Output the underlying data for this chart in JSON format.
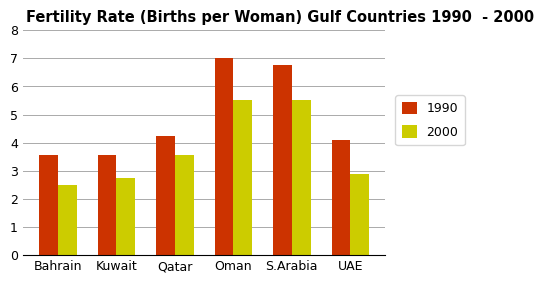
{
  "title": "Fertility Rate (Births per Woman) Gulf Countries 1990  - 2000",
  "categories": [
    "Bahrain",
    "Kuwait",
    "Qatar",
    "Oman",
    "S.Arabia",
    "UAE"
  ],
  "values_1990": [
    3.55,
    3.55,
    4.25,
    7.0,
    6.75,
    4.1
  ],
  "values_2000": [
    2.5,
    2.75,
    3.55,
    5.5,
    5.5,
    2.9
  ],
  "color_1990": "#CC3300",
  "color_2000": "#CCCC00",
  "ylim": [
    0,
    8
  ],
  "yticks": [
    0,
    1,
    2,
    3,
    4,
    5,
    6,
    7,
    8
  ],
  "legend_labels": [
    "1990",
    "2000"
  ],
  "bar_width": 0.32,
  "title_fontsize": 10.5,
  "tick_fontsize": 9,
  "legend_fontsize": 9,
  "grid_color": "#aaaaaa"
}
